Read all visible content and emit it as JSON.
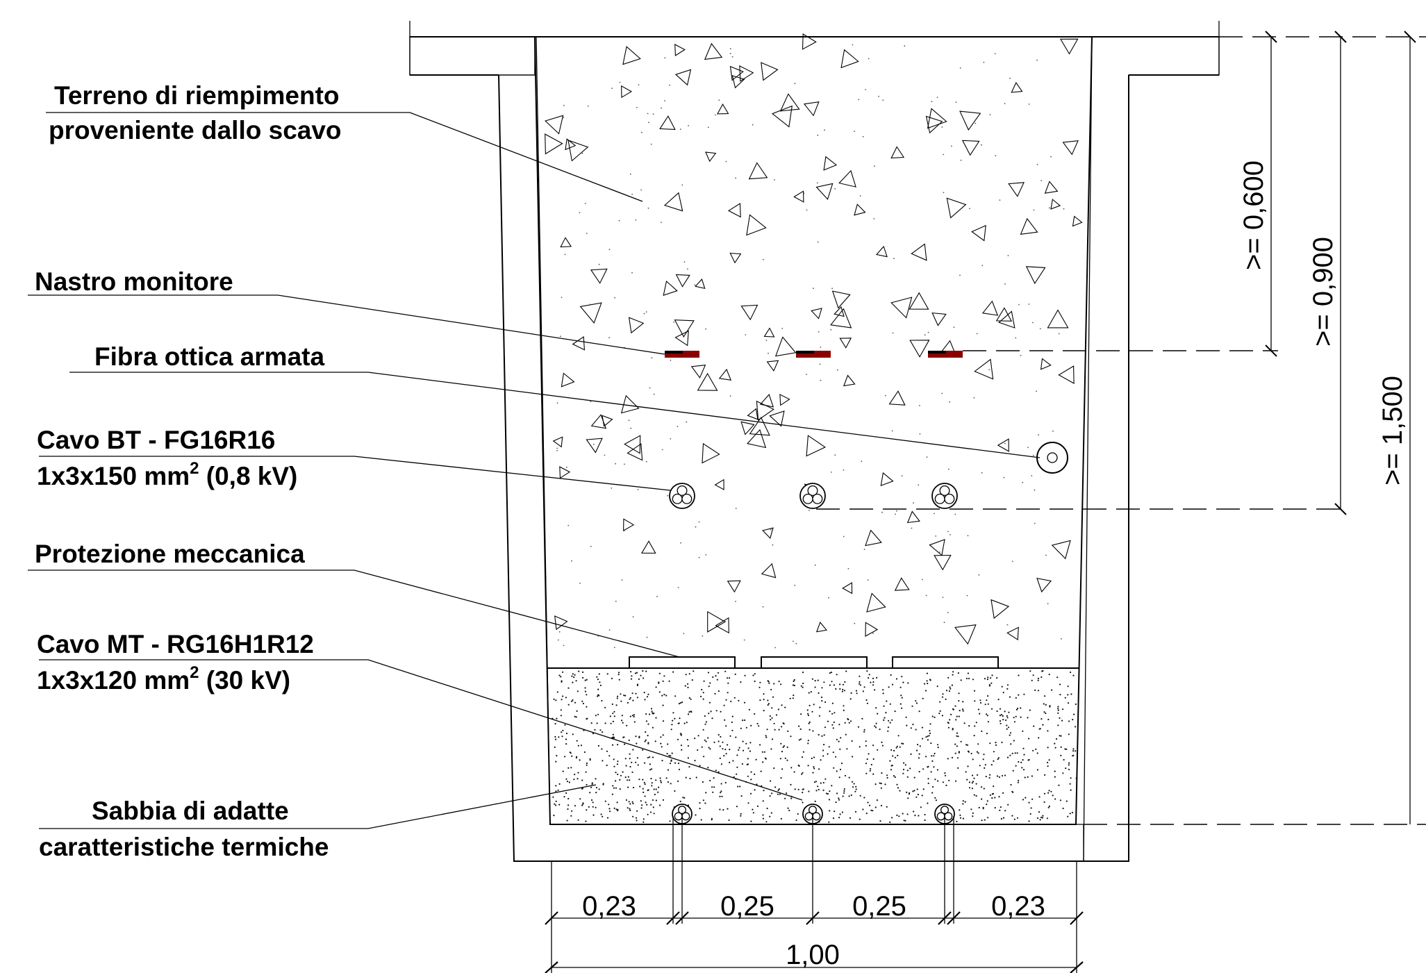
{
  "labels": {
    "backfill_line1": "Terreno di riempimento",
    "backfill_line2": "proveniente dallo scavo",
    "warning_tape": "Nastro monitore",
    "fiber": "Fibra ottica armata",
    "lv_cable_line1": "Cavo BT - FG16R16",
    "lv_cable_line2_pre": "1x3x150 mm",
    "lv_cable_line2_sup": "2",
    "lv_cable_line2_post": " (0,8 kV)",
    "protection": "Protezione meccanica",
    "mv_cable_line1": "Cavo MT - RG16H1R12",
    "mv_cable_line2_pre": "1x3x120 mm",
    "mv_cable_line2_sup": "2",
    "mv_cable_line2_post": "  (30 kV)",
    "sand_line1": "Sabbia di adatte",
    "sand_line2": "caratteristiche termiche"
  },
  "dimensions": {
    "horizontal": [
      "0,23",
      "0,25",
      "0,25",
      "0,23"
    ],
    "total_width": "1,00",
    "depth_tape": ">= 0,600",
    "depth_lv": ">= 0,900",
    "depth_mv": ">= 1,500"
  },
  "colors": {
    "tape_red": "#8b0000",
    "line": "#000000"
  }
}
